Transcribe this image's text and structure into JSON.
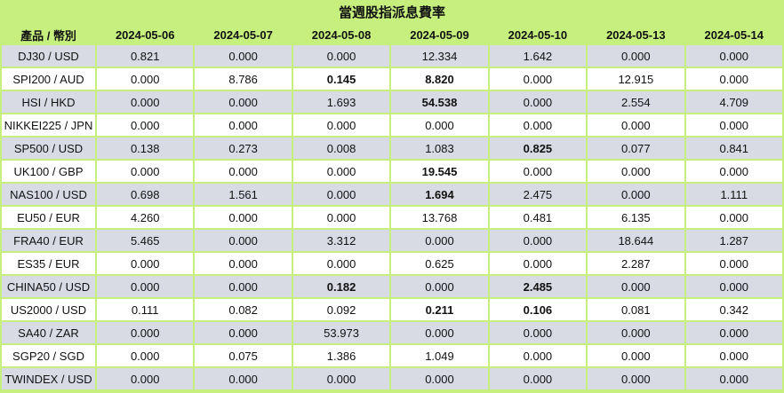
{
  "title": "當週股指派息費率",
  "columns": [
    "產品 / 幣別",
    "2024-05-06",
    "2024-05-07",
    "2024-05-08",
    "2024-05-09",
    "2024-05-10",
    "2024-05-13",
    "2024-05-14"
  ],
  "rows": [
    {
      "product": "DJ30 / USD",
      "values": [
        "0.821",
        "0.000",
        "0.000",
        "12.334",
        "1.642",
        "0.000",
        "0.000"
      ],
      "bold": []
    },
    {
      "product": "SPI200 / AUD",
      "values": [
        "0.000",
        "8.786",
        "0.145",
        "8.820",
        "0.000",
        "12.915",
        "0.000"
      ],
      "bold": [
        2,
        3
      ]
    },
    {
      "product": "HSI / HKD",
      "values": [
        "0.000",
        "0.000",
        "1.693",
        "54.538",
        "0.000",
        "2.554",
        "4.709"
      ],
      "bold": [
        3
      ]
    },
    {
      "product": "NIKKEI225 / JPN",
      "values": [
        "0.000",
        "0.000",
        "0.000",
        "0.000",
        "0.000",
        "0.000",
        "0.000"
      ],
      "bold": []
    },
    {
      "product": "SP500 / USD",
      "values": [
        "0.138",
        "0.273",
        "0.008",
        "1.083",
        "0.825",
        "0.077",
        "0.841"
      ],
      "bold": [
        4
      ]
    },
    {
      "product": "UK100 / GBP",
      "values": [
        "0.000",
        "0.000",
        "0.000",
        "19.545",
        "0.000",
        "0.000",
        "0.000"
      ],
      "bold": [
        3
      ]
    },
    {
      "product": "NAS100 / USD",
      "values": [
        "0.698",
        "1.561",
        "0.000",
        "1.694",
        "2.475",
        "0.000",
        "1.111"
      ],
      "bold": [
        3
      ]
    },
    {
      "product": "EU50 / EUR",
      "values": [
        "4.260",
        "0.000",
        "0.000",
        "13.768",
        "0.481",
        "6.135",
        "0.000"
      ],
      "bold": []
    },
    {
      "product": "FRA40 / EUR",
      "values": [
        "5.465",
        "0.000",
        "3.312",
        "0.000",
        "0.000",
        "18.644",
        "1.287"
      ],
      "bold": []
    },
    {
      "product": "ES35 / EUR",
      "values": [
        "0.000",
        "0.000",
        "0.000",
        "0.625",
        "0.000",
        "2.287",
        "0.000"
      ],
      "bold": []
    },
    {
      "product": "CHINA50 / USD",
      "values": [
        "0.000",
        "0.000",
        "0.182",
        "0.000",
        "2.485",
        "0.000",
        "0.000"
      ],
      "bold": [
        2,
        4
      ]
    },
    {
      "product": "US2000 / USD",
      "values": [
        "0.111",
        "0.082",
        "0.092",
        "0.211",
        "0.106",
        "0.081",
        "0.342"
      ],
      "bold": [
        3,
        4
      ]
    },
    {
      "product": "SA40 / ZAR",
      "values": [
        "0.000",
        "0.000",
        "53.973",
        "0.000",
        "0.000",
        "0.000",
        "0.000"
      ],
      "bold": []
    },
    {
      "product": "SGP20 / SGD",
      "values": [
        "0.000",
        "0.075",
        "1.386",
        "1.049",
        "0.000",
        "0.000",
        "0.000"
      ],
      "bold": []
    },
    {
      "product": "TWINDEX / USD",
      "values": [
        "0.000",
        "0.000",
        "0.000",
        "0.000",
        "0.000",
        "0.000",
        "0.000"
      ],
      "bold": []
    }
  ]
}
